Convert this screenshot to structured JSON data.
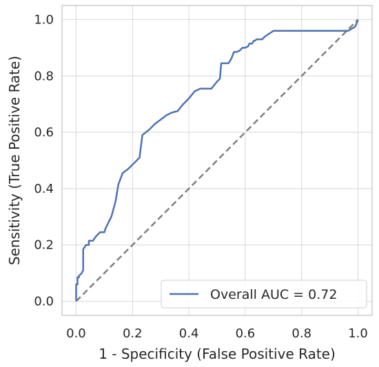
{
  "chart_data": {
    "type": "line",
    "title": "",
    "xlabel": "1 - Specificity (False Positive Rate)",
    "ylabel": "Sensitivity (True Positive Rate)",
    "xlim": [
      -0.05,
      1.05
    ],
    "ylim": [
      -0.05,
      1.05
    ],
    "xticks": [
      0.0,
      0.2,
      0.4,
      0.6,
      0.8,
      1.0
    ],
    "yticks": [
      0.0,
      0.2,
      0.4,
      0.6,
      0.8,
      1.0
    ],
    "xtick_labels": [
      "0.0",
      "0.2",
      "0.4",
      "0.6",
      "0.8",
      "1.0"
    ],
    "ytick_labels": [
      "0.0",
      "0.2",
      "0.4",
      "0.6",
      "0.8",
      "1.0"
    ],
    "grid": true,
    "legend_position": "lower-right",
    "series": [
      {
        "name": "Overall AUC = 0.72",
        "color": "#4c72b0",
        "style": "solid",
        "x": [
          0.0,
          0.0,
          0.005,
          0.005,
          0.01,
          0.01,
          0.02,
          0.025,
          0.025,
          0.035,
          0.045,
          0.045,
          0.06,
          0.07,
          0.085,
          0.1,
          0.105,
          0.12,
          0.125,
          0.14,
          0.15,
          0.165,
          0.185,
          0.205,
          0.225,
          0.235,
          0.26,
          0.28,
          0.3,
          0.32,
          0.34,
          0.36,
          0.38,
          0.4,
          0.42,
          0.44,
          0.46,
          0.48,
          0.5,
          0.51,
          0.515,
          0.54,
          0.55,
          0.56,
          0.57,
          0.58,
          0.59,
          0.6,
          0.61,
          0.615,
          0.625,
          0.63,
          0.635,
          0.64,
          0.66,
          0.67,
          0.7,
          0.72,
          0.96,
          0.965,
          0.99,
          1.0
        ],
        "y": [
          0.0,
          0.06,
          0.06,
          0.085,
          0.085,
          0.09,
          0.1,
          0.11,
          0.185,
          0.2,
          0.2,
          0.215,
          0.215,
          0.23,
          0.245,
          0.245,
          0.26,
          0.29,
          0.3,
          0.355,
          0.415,
          0.455,
          0.47,
          0.49,
          0.51,
          0.59,
          0.61,
          0.63,
          0.645,
          0.66,
          0.67,
          0.675,
          0.7,
          0.72,
          0.745,
          0.755,
          0.755,
          0.755,
          0.78,
          0.79,
          0.845,
          0.845,
          0.86,
          0.885,
          0.885,
          0.89,
          0.9,
          0.9,
          0.905,
          0.915,
          0.915,
          0.925,
          0.925,
          0.93,
          0.93,
          0.94,
          0.96,
          0.96,
          0.96,
          0.96,
          0.975,
          1.0
        ]
      },
      {
        "name": "",
        "color": "#7f7f7f",
        "style": "dashed",
        "x": [
          0,
          1
        ],
        "y": [
          0,
          1
        ]
      }
    ]
  }
}
